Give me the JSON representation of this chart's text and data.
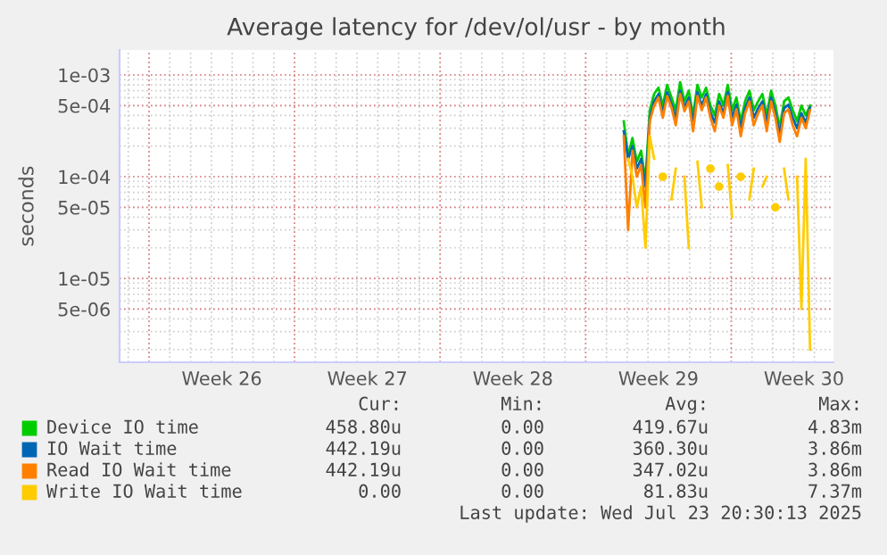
{
  "chart_data": {
    "type": "line",
    "title": "Average latency for /dev/ol/usr - by month",
    "ylabel": "seconds",
    "log": "y",
    "grid": true,
    "legend": "bottom",
    "line_style": "solid",
    "marker": "none",
    "xlim": [
      "2025-06-21T14:00",
      "2025-07-25T22:00"
    ],
    "ylim": [
      1.5e-06,
      0.00176
    ],
    "xticks": [
      {
        "value": "2025-06-23",
        "label": null
      },
      {
        "value": "2025-06-26T12:00",
        "label": "Week 26"
      },
      {
        "value": "2025-06-30",
        "label": null
      },
      {
        "value": "2025-07-03T12:00",
        "label": "Week 27"
      },
      {
        "value": "2025-07-07",
        "label": null
      },
      {
        "value": "2025-07-10T12:00",
        "label": "Week 28"
      },
      {
        "value": "2025-07-14",
        "label": null
      },
      {
        "value": "2025-07-17T12:00",
        "label": "Week 29"
      },
      {
        "value": "2025-07-21",
        "label": null
      },
      {
        "value": "2025-07-24T12:00",
        "label": "Week 30"
      }
    ],
    "yticks": [
      {
        "value": 5e-06,
        "label": "5e-06"
      },
      {
        "value": 1e-05,
        "label": "1e-05"
      },
      {
        "value": 5e-05,
        "label": "5e-05"
      },
      {
        "value": 0.0001,
        "label": "1e-04"
      },
      {
        "value": 0.0005,
        "label": "5e-04"
      },
      {
        "value": 0.001,
        "label": "1e-03"
      }
    ],
    "x": [
      "2025-07-15T20:00",
      "2025-07-16T01:00",
      "2025-07-16T06:00",
      "2025-07-16T11:00",
      "2025-07-16T16:00",
      "2025-07-16T21:00",
      "2025-07-17T02:00",
      "2025-07-17T07:00",
      "2025-07-17T12:00",
      "2025-07-17T17:00",
      "2025-07-17T22:00",
      "2025-07-18T03:00",
      "2025-07-18T08:00",
      "2025-07-18T13:00",
      "2025-07-18T18:00",
      "2025-07-18T23:00",
      "2025-07-19T04:00",
      "2025-07-19T09:00",
      "2025-07-19T14:00",
      "2025-07-19T19:00",
      "2025-07-20T00:00",
      "2025-07-20T05:00",
      "2025-07-20T10:00",
      "2025-07-20T15:00",
      "2025-07-20T20:00",
      "2025-07-21T01:00",
      "2025-07-21T06:00",
      "2025-07-21T11:00",
      "2025-07-21T16:00",
      "2025-07-21T21:00",
      "2025-07-22T02:00",
      "2025-07-22T07:00",
      "2025-07-22T12:00",
      "2025-07-22T17:00",
      "2025-07-22T22:00",
      "2025-07-23T03:00",
      "2025-07-23T08:00",
      "2025-07-23T13:00",
      "2025-07-23T18:00",
      "2025-07-23T23:00",
      "2025-07-24T04:00",
      "2025-07-24T09:00",
      "2025-07-24T14:00",
      "2025-07-24T19:00"
    ],
    "series": [
      {
        "name": "Device IO time",
        "color": "#00cc00",
        "values": [
          0.00035,
          0.00016,
          0.00024,
          0.00014,
          0.00018,
          9e-05,
          0.00045,
          0.00065,
          0.00075,
          0.0005,
          0.0008,
          0.0006,
          0.00045,
          0.00085,
          0.00055,
          0.0007,
          0.0004,
          0.0008,
          0.0006,
          0.00075,
          0.0005,
          0.0004,
          0.00065,
          0.0005,
          0.0008,
          0.00045,
          0.0006,
          0.00035,
          0.00055,
          0.0007,
          0.00045,
          0.00055,
          0.00065,
          0.0004,
          0.0007,
          0.0005,
          0.0003,
          0.00055,
          0.0006,
          0.00045,
          0.00035,
          0.0005,
          0.0004,
          0.0005
        ]
      },
      {
        "name": "IO Wait time",
        "color": "#0066b3",
        "values": [
          0.00028,
          0.00015,
          0.0002,
          0.00012,
          0.00015,
          8e-05,
          0.00038,
          0.00055,
          0.00065,
          0.00042,
          0.00068,
          0.00052,
          0.00038,
          0.0007,
          0.00048,
          0.0006,
          0.00034,
          0.00068,
          0.0005,
          0.00065,
          0.00043,
          0.00034,
          0.00055,
          0.00042,
          0.00068,
          0.00038,
          0.00051,
          0.0003,
          0.00047,
          0.0006,
          0.00038,
          0.00047,
          0.00055,
          0.00034,
          0.0006,
          0.00042,
          0.00026,
          0.00047,
          0.00051,
          0.00038,
          0.0003,
          0.00042,
          0.00034,
          0.00048
        ]
      },
      {
        "name": "Read IO Wait time",
        "color": "#ff8000",
        "values": [
          0.00025,
          3e-05,
          0.00018,
          0.0001,
          0.00013,
          5e-05,
          0.00035,
          0.0005,
          0.0006,
          0.00038,
          0.00062,
          0.00048,
          0.00032,
          0.00065,
          0.00044,
          0.00055,
          0.00028,
          0.00062,
          0.00045,
          0.0006,
          0.00038,
          0.00028,
          0.0005,
          0.00038,
          0.00062,
          0.00032,
          0.00046,
          0.00025,
          0.00042,
          0.00055,
          0.00032,
          0.00042,
          0.0005,
          0.00028,
          0.00055,
          0.00038,
          0.00022,
          0.00042,
          0.00046,
          0.00032,
          0.00025,
          0.00038,
          0.0003,
          0.00045
        ]
      },
      {
        "name": "Write IO Wait time",
        "color": "#ffcc00",
        "values": [
          null,
          0.00015,
          0.0001,
          5e-05,
          8e-05,
          2e-05,
          0.00025,
          0.00015,
          null,
          0.0001,
          null,
          6e-05,
          0.00012,
          null,
          0.0001,
          2e-05,
          null,
          0.00014,
          5e-05,
          null,
          0.00012,
          null,
          8e-05,
          null,
          0.00013,
          4e-05,
          null,
          0.0001,
          null,
          6e-05,
          0.00012,
          null,
          8e-05,
          0.0001,
          null,
          5e-05,
          null,
          0.00012,
          6e-05,
          null,
          0.0001,
          5e-06,
          0.00015,
          2e-06
        ]
      }
    ],
    "annotations": [
      "Cur:",
      "Min:",
      "Avg:",
      "Max:",
      "458.80u",
      "0.00",
      "419.67u",
      "4.83m",
      "442.19u",
      "0.00",
      "360.30u",
      "3.86m",
      "442.19u",
      "0.00",
      "347.02u",
      "3.86m",
      "0.00",
      "0.00",
      "81.83u",
      "7.37m",
      "Last update: Wed Jul 23 20:30:13 2025"
    ]
  }
}
